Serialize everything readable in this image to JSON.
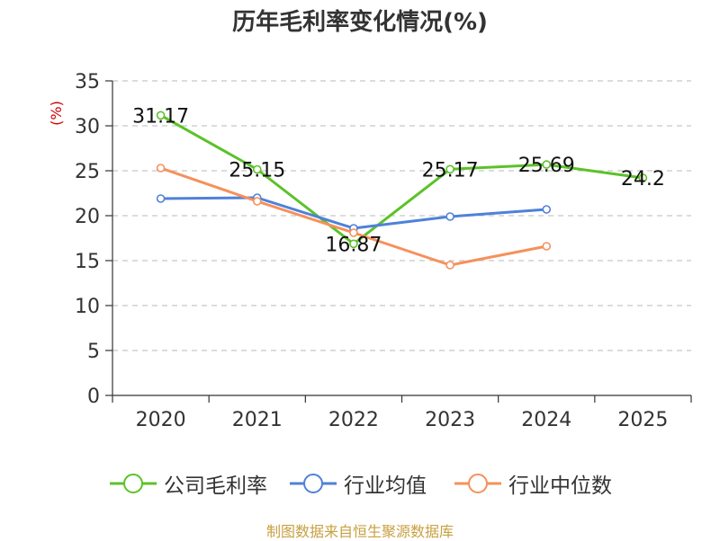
{
  "chart_data": {
    "type": "line",
    "title": "历年毛利率变化情况(%)",
    "ylabel": "(%)",
    "xlabel": "",
    "categories": [
      "2020",
      "2021",
      "2022",
      "2023",
      "2024",
      "2025"
    ],
    "ylim": [
      0,
      35
    ],
    "yticks": [
      0,
      5,
      10,
      15,
      20,
      25,
      30,
      35
    ],
    "grid": true,
    "legend_position": "bottom",
    "series": [
      {
        "name": "公司毛利率",
        "color": "#5bc229",
        "values": [
          31.17,
          25.15,
          16.87,
          25.17,
          25.69,
          24.2
        ],
        "labels": [
          "31.17",
          "25.15",
          "16.87",
          "25.17",
          "25.69",
          "24.2"
        ]
      },
      {
        "name": "行业均值",
        "color": "#4f81d9",
        "values": [
          21.9,
          22.0,
          18.6,
          19.9,
          20.7,
          null
        ]
      },
      {
        "name": "行业中位数",
        "color": "#f6905b",
        "values": [
          25.3,
          21.6,
          18.1,
          14.5,
          16.6,
          null
        ]
      }
    ],
    "source": "制图数据来自恒生聚源数据库"
  }
}
